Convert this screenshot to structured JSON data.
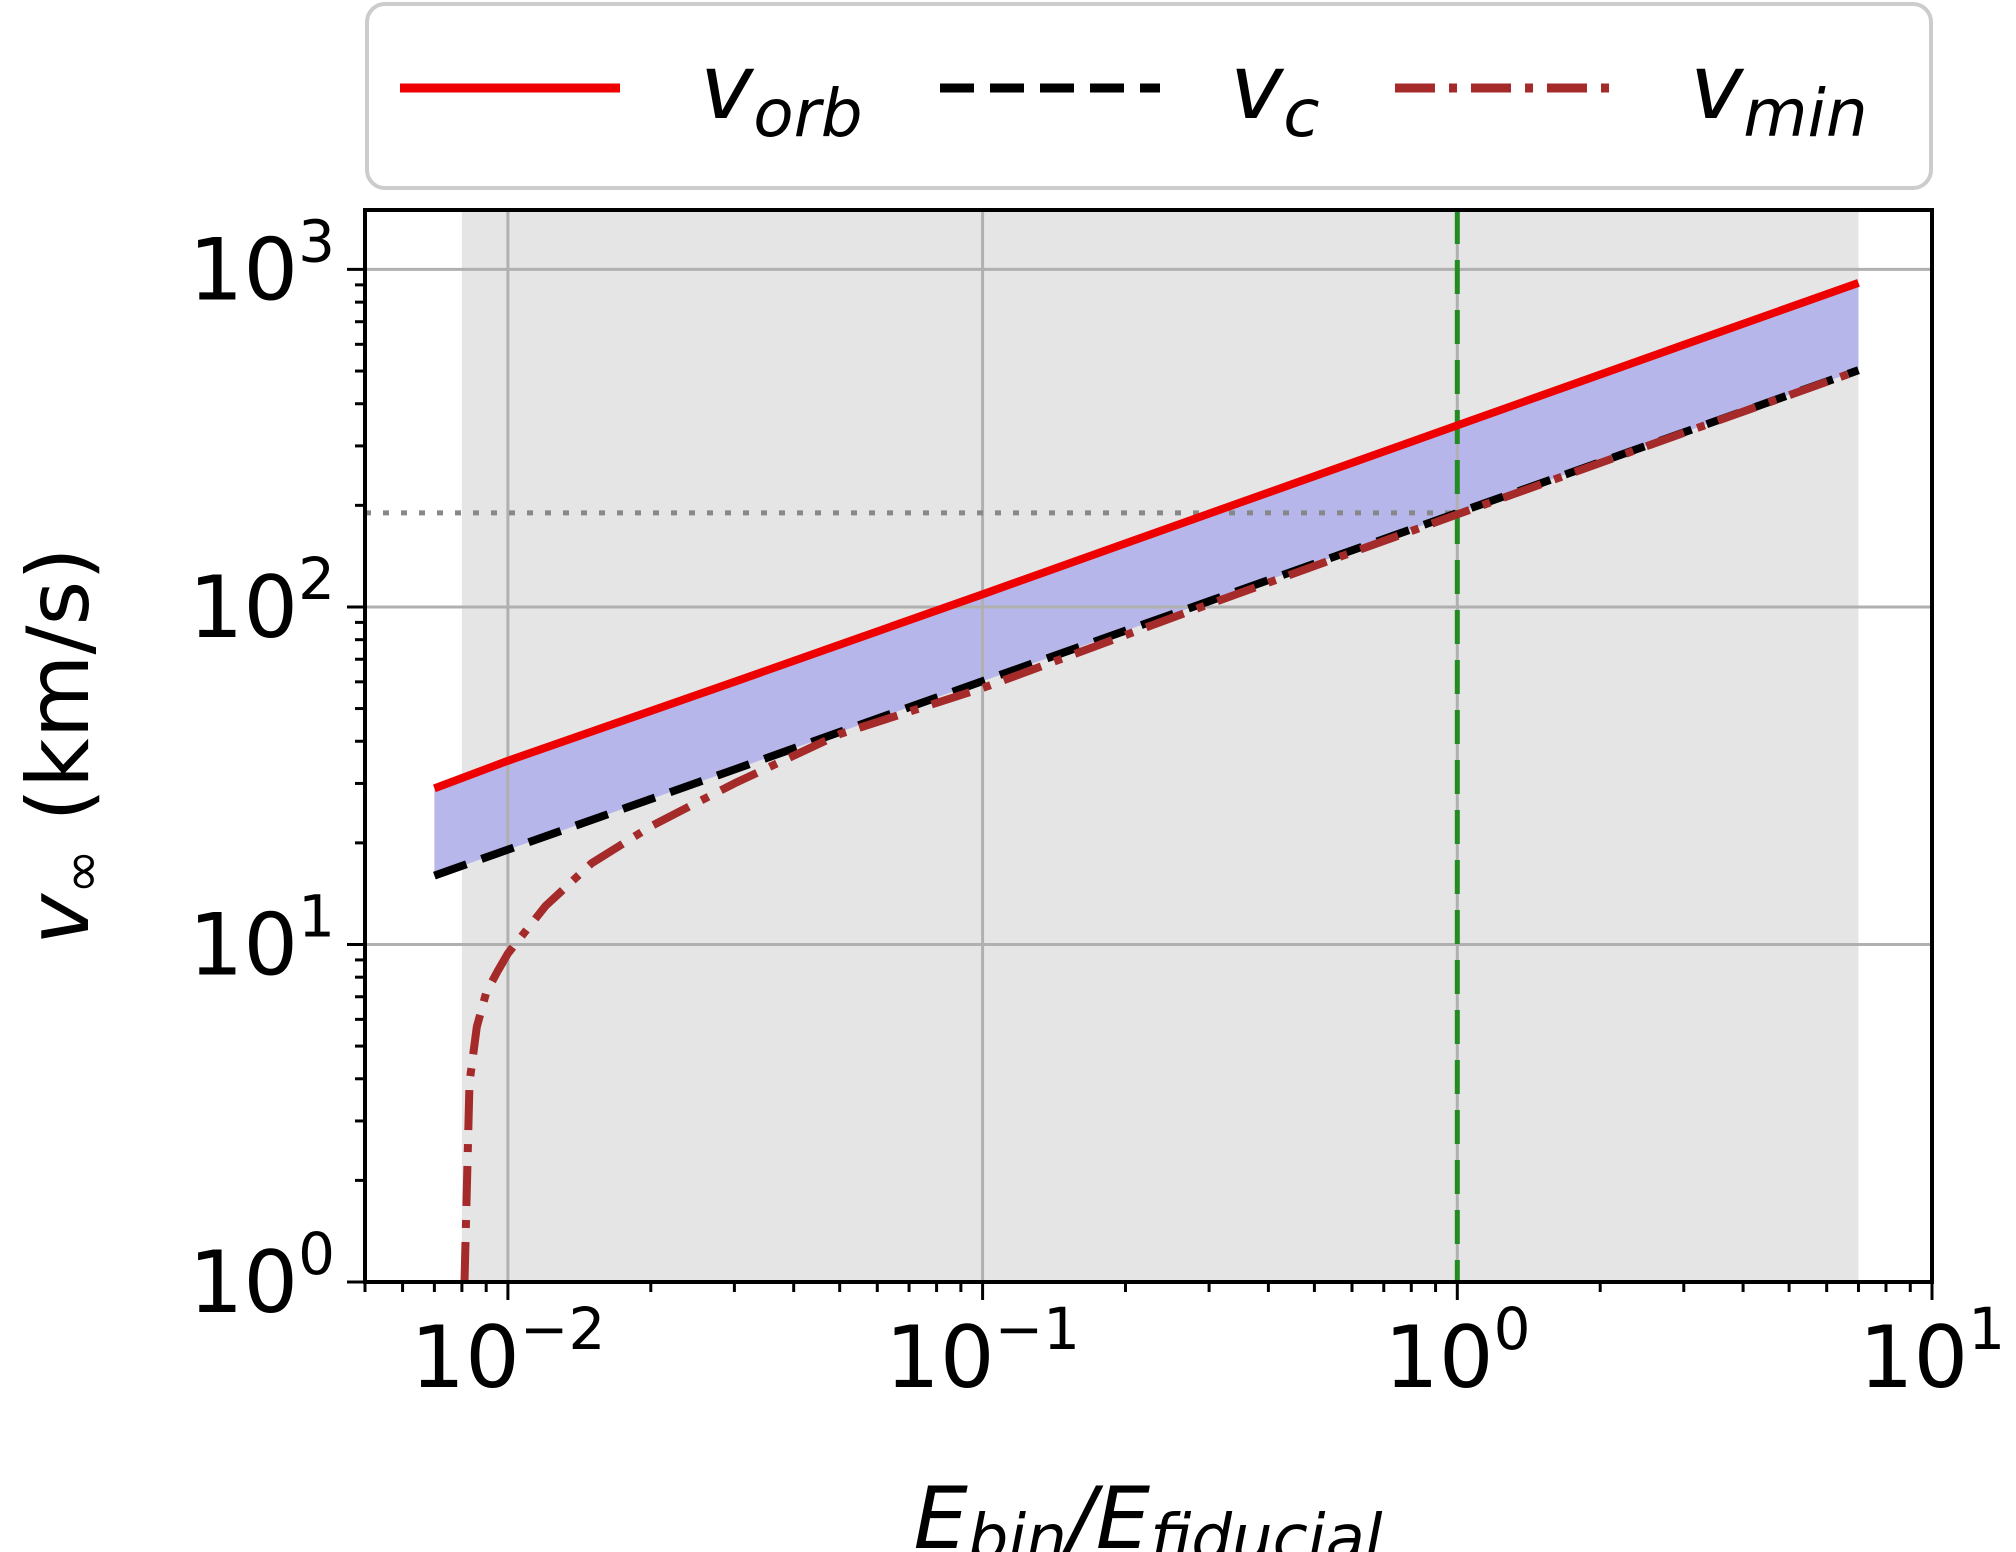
{
  "chart_data": {
    "type": "line",
    "xlabel": "E_bin/E_fiducial",
    "ylabel": "v∞ (km/s)",
    "xscale": "log",
    "yscale": "log",
    "xlim": [
      0.005,
      10
    ],
    "ylim": [
      1,
      1500
    ],
    "grid": true,
    "legend_position": "top (above plot, 3 columns)",
    "x_ticks": [
      {
        "base": "10",
        "exp": "−2",
        "value": 0.01
      },
      {
        "base": "10",
        "exp": "−1",
        "value": 0.1
      },
      {
        "base": "10",
        "exp": "0",
        "value": 1
      },
      {
        "base": "10",
        "exp": "1",
        "value": 10
      }
    ],
    "y_ticks": [
      {
        "base": "10",
        "exp": "0",
        "value": 1
      },
      {
        "base": "10",
        "exp": "1",
        "value": 10
      },
      {
        "base": "10",
        "exp": "2",
        "value": 100
      },
      {
        "base": "10",
        "exp": "3",
        "value": 1000
      }
    ],
    "series": [
      {
        "name": "v_orb",
        "color": "#ee0000",
        "style": "solid",
        "x": [
          0.007,
          0.01,
          0.03,
          0.1,
          0.3,
          1,
          3,
          7
        ],
        "y": [
          29,
          35,
          60,
          109,
          189,
          345,
          598,
          912
        ]
      },
      {
        "name": "v_c",
        "color": "#000000",
        "style": "dashed",
        "x": [
          0.007,
          0.01,
          0.03,
          0.1,
          0.3,
          1,
          3,
          7
        ],
        "y": [
          16,
          19.1,
          33,
          60.3,
          104,
          190,
          329,
          503
        ]
      },
      {
        "name": "v_min",
        "color": "#a52a2a",
        "style": "dashdot",
        "x": [
          0.0081,
          0.0083,
          0.0086,
          0.009,
          0.0095,
          0.01,
          0.012,
          0.015,
          0.02,
          0.03,
          0.05,
          0.1,
          0.3,
          1,
          3,
          7
        ],
        "y": [
          1,
          3.9,
          5.7,
          7.2,
          8.3,
          9.4,
          13,
          17.4,
          22.4,
          30,
          42,
          57.5,
          102,
          188,
          328,
          502
        ]
      }
    ],
    "shaded_regions": [
      {
        "name": "gray-band",
        "color": "#e5e5e5",
        "x": [
          0.008,
          7
        ]
      },
      {
        "name": "blue-band",
        "color": "#b3b3ea",
        "between": [
          "v_orb",
          "v_c"
        ]
      }
    ],
    "reference_lines": [
      {
        "orientation": "vertical",
        "x": 1,
        "color": "#228b22",
        "style": "dashed"
      },
      {
        "orientation": "horizontal",
        "y": 190,
        "x_end": 1,
        "color": "#888888",
        "style": "dotted"
      }
    ]
  },
  "legend": {
    "items": [
      {
        "base": "v",
        "sub": "orb",
        "color": "#ee0000",
        "dash": "none"
      },
      {
        "base": "v",
        "sub": "c",
        "color": "#000000",
        "dash": "34 16"
      },
      {
        "base": "v",
        "sub": "min",
        "color": "#a52a2a",
        "dash": "40 14 8 14"
      }
    ]
  },
  "axes": {
    "x_label_main1": "E",
    "x_label_sub1": "bin",
    "x_label_slash": "/E",
    "x_label_sub2": "fiducial",
    "y_label_main": "v",
    "y_label_sub": "∞",
    "y_label_rest": " (km/s)"
  }
}
